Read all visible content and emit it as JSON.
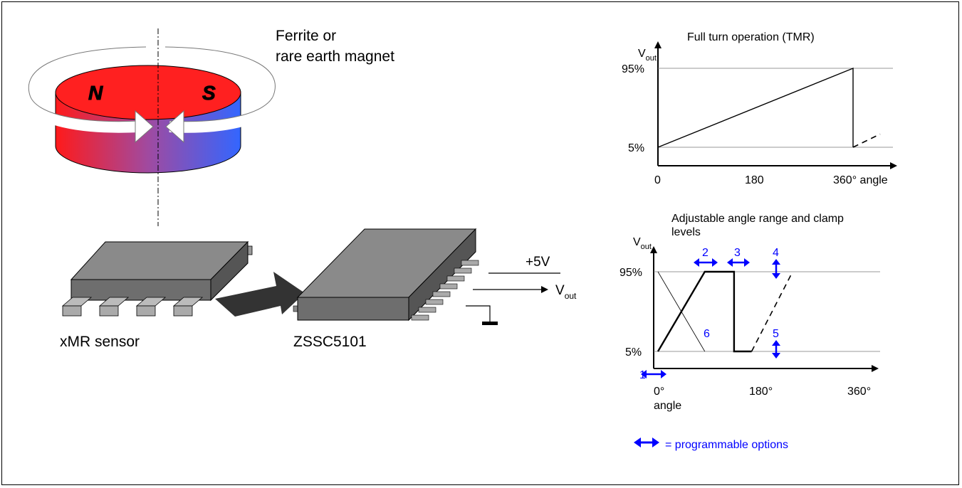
{
  "magnet": {
    "label_line1": "Ferrite or",
    "label_line2": "rare earth magnet",
    "pole_n": "N",
    "pole_s": "S",
    "colors": {
      "north": "#ff1a1a",
      "south": "#3366ff",
      "mid": "#9a4aa0"
    }
  },
  "sensor": {
    "label": "xMR sensor"
  },
  "ic": {
    "label": "ZSSC5101"
  },
  "supply": {
    "voltage": "+5V",
    "vout_main": "V",
    "vout_sub": "out"
  },
  "chart_top": {
    "title": "Full turn operation (TMR)",
    "y_label_main": "V",
    "y_label_sub": "out",
    "y_ticks": [
      "95%",
      "5%"
    ],
    "x_ticks": [
      "0",
      "180",
      "360° angle"
    ]
  },
  "chart_bottom": {
    "title_line1": "Adjustable angle range and clamp",
    "title_line2": "levels",
    "y_label_main": "V",
    "y_label_sub": "out",
    "y_ticks": [
      "95%",
      "5%"
    ],
    "x_ticks": [
      "0°",
      "180°",
      "360°"
    ],
    "x_label": "angle",
    "markers": [
      "1",
      "2",
      "3",
      "4",
      "5",
      "6"
    ]
  },
  "legend": {
    "text": "= programmable options"
  },
  "chart_data": [
    {
      "type": "line",
      "title": "Full turn operation (TMR)",
      "xlabel": "angle",
      "ylabel": "Vout",
      "xlim": [
        0,
        360
      ],
      "ylim_ticks": [
        "5%",
        "95%"
      ],
      "series": [
        {
          "style": "solid",
          "x": [
            0,
            360,
            360
          ],
          "y": [
            5,
            95,
            5
          ]
        },
        {
          "style": "dashed",
          "x": [
            360,
            410
          ],
          "y": [
            5,
            20
          ]
        }
      ]
    },
    {
      "type": "line",
      "title": "Adjustable angle range and clamp levels",
      "xlabel": "angle",
      "ylabel": "Vout",
      "xlim": [
        0,
        360
      ],
      "ylim_ticks": [
        "5%",
        "95%"
      ],
      "series": [
        {
          "style": "solid-thick",
          "x": [
            0,
            80,
            130,
            130,
            160
          ],
          "y": [
            5,
            95,
            95,
            5,
            5
          ]
        },
        {
          "style": "dashed",
          "x": [
            160,
            230
          ],
          "y": [
            5,
            95
          ]
        },
        {
          "style": "thin",
          "x": [
            0,
            80
          ],
          "y": [
            95,
            5
          ]
        }
      ]
    }
  ]
}
